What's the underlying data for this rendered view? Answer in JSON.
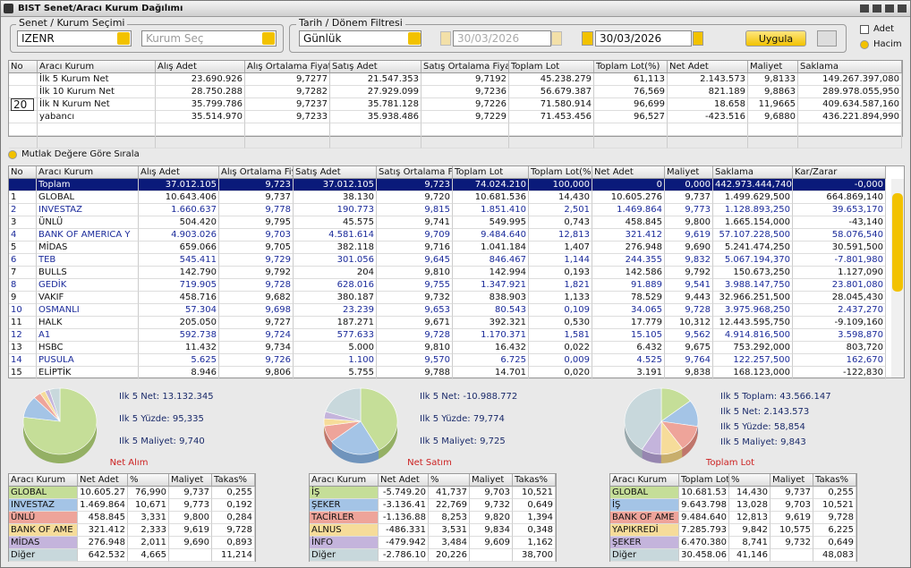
{
  "window_title": "BIST Senet/Aracı Kurum Dağılımı",
  "filters": {
    "group1_label": "Senet / Kurum Seçimi",
    "symbol": "IZENR",
    "broker_placeholder": "Kurum Seç",
    "group2_label": "Tarih / Dönem Filtresi",
    "period": "Günlük",
    "start_date": "30/03/2026",
    "end_date": "30/03/2026",
    "apply_button": "Uygula",
    "option_count": "Adet",
    "option_volume": "Hacim"
  },
  "top_table": {
    "headers": [
      "No",
      "Aracı Kurum",
      "Alış Adet",
      "Alış Ortalama Fiyat",
      "Satış Adet",
      "Satış Ortalama Fiyat",
      "Toplam Lot",
      "Toplam Lot(%)",
      "Net Adet",
      "Maliyet",
      "Saklama"
    ],
    "n_input": "20",
    "rows": [
      [
        "İlk 5 Kurum Net",
        "23.690.926",
        "9,7277",
        "21.547.353",
        "9,7192",
        "45.238.279",
        "61,113",
        "2.143.573",
        "9,8133",
        "149.267.397,080"
      ],
      [
        "İlk 10 Kurum Net",
        "28.750.288",
        "9,7282",
        "27.929.099",
        "9,7236",
        "56.679.387",
        "76,569",
        "821.189",
        "9,8863",
        "289.978.055,950"
      ],
      [
        "İlk N Kurum Net",
        "35.799.786",
        "9,7237",
        "35.781.128",
        "9,7226",
        "71.580.914",
        "96,699",
        "18.658",
        "11,9665",
        "409.634.587,160"
      ],
      [
        "yabancı",
        "35.514.970",
        "9,7233",
        "35.938.486",
        "9,7229",
        "71.453.456",
        "96,527",
        "-423.516",
        "9,6880",
        "436.221.894,990"
      ]
    ]
  },
  "sort_option": "Mutlak Değere Göre Sırala",
  "main_table": {
    "headers": [
      "No",
      "Aracı Kurum",
      "Alış Adet",
      "Alış Ortalama Fiy",
      "Satış Adet",
      "Satış Ortalama Fi",
      "Toplam Lot",
      "Toplam Lot(%",
      "Net Adet",
      "Maliyet",
      "Saklama",
      "Kar/Zarar"
    ],
    "rows": [
      [
        null,
        "Toplam",
        "37.012.105",
        "9,723",
        "37.012.105",
        "9,723",
        "74.024.210",
        "100,000",
        "0",
        "0,000",
        "442.973.444,740",
        "-0,000"
      ],
      [
        "1",
        "GLOBAL",
        "10.643.406",
        "9,737",
        "38.130",
        "9,720",
        "10.681.536",
        "14,430",
        "10.605.276",
        "9,737",
        "1.499.629,500",
        "664.869,140"
      ],
      [
        "2",
        "INVESTAZ",
        "1.660.637",
        "9,778",
        "190.773",
        "9,815",
        "1.851.410",
        "2,501",
        "1.469.864",
        "9,773",
        "1.128.893,250",
        "39.653,170"
      ],
      [
        "3",
        "ÜNLÜ",
        "504.420",
        "9,795",
        "45.575",
        "9,741",
        "549.995",
        "0,743",
        "458.845",
        "9,800",
        "1.665.154,000",
        "-43,140"
      ],
      [
        "4",
        "BANK OF AMERICA Y",
        "4.903.026",
        "9,703",
        "4.581.614",
        "9,709",
        "9.484.640",
        "12,813",
        "321.412",
        "9,619",
        "57.107.228,500",
        "58.076,540"
      ],
      [
        "5",
        "MİDAS",
        "659.066",
        "9,705",
        "382.118",
        "9,716",
        "1.041.184",
        "1,407",
        "276.948",
        "9,690",
        "5.241.474,250",
        "30.591,500"
      ],
      [
        "6",
        "TEB",
        "545.411",
        "9,729",
        "301.056",
        "9,645",
        "846.467",
        "1,144",
        "244.355",
        "9,832",
        "5.067.194,370",
        "-7.801,980"
      ],
      [
        "7",
        "BULLS",
        "142.790",
        "9,792",
        "204",
        "9,810",
        "142.994",
        "0,193",
        "142.586",
        "9,792",
        "150.673,250",
        "1.127,090"
      ],
      [
        "8",
        "GEDİK",
        "719.905",
        "9,728",
        "628.016",
        "9,755",
        "1.347.921",
        "1,821",
        "91.889",
        "9,541",
        "3.988.147,750",
        "23.801,080"
      ],
      [
        "9",
        "VAKIF",
        "458.716",
        "9,682",
        "380.187",
        "9,732",
        "838.903",
        "1,133",
        "78.529",
        "9,443",
        "32.966.251,500",
        "28.045,430"
      ],
      [
        "10",
        "OSMANLI",
        "57.304",
        "9,698",
        "23.239",
        "9,653",
        "80.543",
        "0,109",
        "34.065",
        "9,728",
        "3.975.968,250",
        "2.437,270"
      ],
      [
        "11",
        "HALK",
        "205.050",
        "9,727",
        "187.271",
        "9,671",
        "392.321",
        "0,530",
        "17.779",
        "10,312",
        "12.443.595,750",
        "-9.109,160"
      ],
      [
        "12",
        "A1",
        "592.738",
        "9,724",
        "577.633",
        "9,728",
        "1.170.371",
        "1,581",
        "15.105",
        "9,562",
        "4.914.816,500",
        "3.598,870"
      ],
      [
        "13",
        "HSBC",
        "11.432",
        "9,734",
        "5.000",
        "9,810",
        "16.432",
        "0,022",
        "6.432",
        "9,675",
        "753.292,000",
        "803,720"
      ],
      [
        "14",
        "PUSULA",
        "5.625",
        "9,726",
        "1.100",
        "9,570",
        "6.725",
        "0,009",
        "4.525",
        "9,764",
        "122.257,500",
        "162,670"
      ],
      [
        "15",
        "ELİPTİK",
        "8.946",
        "9,806",
        "5.755",
        "9,788",
        "14.701",
        "0,020",
        "3.191",
        "9,838",
        "168.123,000",
        "-122,830"
      ]
    ]
  },
  "panels": [
    {
      "title": "Net Alım",
      "stats": [
        "Ilk 5 Net: 13.132.345",
        "Ilk 5 Yüzde: 95,335",
        "Ilk 5 Maliyet: 9,740"
      ],
      "headers": [
        "Aracı Kurum",
        "Net Adet",
        "%",
        "Maliyet",
        "Takas%"
      ],
      "rows": [
        [
          "GLOBAL",
          "10.605.27",
          "76,990",
          "9,737",
          "0,255"
        ],
        [
          "INVESTAZ",
          "1.469.864",
          "10,671",
          "9,773",
          "0,192"
        ],
        [
          "ÜNLÜ",
          "458.845",
          "3,331",
          "9,800",
          "0,284"
        ],
        [
          "BANK OF AME",
          "321.412",
          "2,333",
          "9,619",
          "9,728"
        ],
        [
          "MİDAS",
          "276.948",
          "2,011",
          "9,690",
          "0,893"
        ],
        [
          "Diğer",
          "642.532",
          "4,665",
          null,
          "11,214"
        ]
      ]
    },
    {
      "title": "Net Satım",
      "stats": [
        "Ilk 5 Net: -10.988.772",
        "Ilk 5 Yüzde: 79,774",
        "Ilk 5 Maliyet: 9,725"
      ],
      "headers": [
        "Aracı Kurum",
        "Net Adet",
        "%",
        "Maliyet",
        "Takas%"
      ],
      "rows": [
        [
          "İŞ",
          "-5.749.20",
          "41,737",
          "9,703",
          "10,521"
        ],
        [
          "ŞEKER",
          "-3.136.41",
          "22,769",
          "9,732",
          "0,649"
        ],
        [
          "TACİRLER",
          "-1.136.88",
          "8,253",
          "9,820",
          "1,394"
        ],
        [
          "ALNUS",
          "-486.331",
          "3,531",
          "9,834",
          "0,348"
        ],
        [
          "İNFO",
          "-479.942",
          "3,484",
          "9,609",
          "1,162"
        ],
        [
          "Diğer",
          "-2.786.10",
          "20,226",
          null,
          "38,700"
        ]
      ]
    },
    {
      "title": "Toplam Lot",
      "stats": [
        "Ilk 5 Toplam: 43.566.147",
        "Ilk 5 Net: 2.143.573",
        "Ilk 5 Yüzde: 58,854",
        "Ilk 5 Maliyet: 9,843"
      ],
      "headers": [
        "Aracı Kurum",
        "Toplam Lot",
        "%",
        "Maliyet",
        "Takas%"
      ],
      "rows": [
        [
          "GLOBAL",
          "10.681.53",
          "14,430",
          "9,737",
          "0,255"
        ],
        [
          "İŞ",
          "9.643.798",
          "13,028",
          "9,703",
          "10,521"
        ],
        [
          "BANK OF AME",
          "9.484.640",
          "12,813",
          "9,619",
          "9,728"
        ],
        [
          "YAPIKREDİ",
          "7.285.793",
          "9,842",
          "10,575",
          "6,225"
        ],
        [
          "ŞEKER",
          "6.470.380",
          "8,741",
          "9,732",
          "0,649"
        ],
        [
          "Diğer",
          "30.458.06",
          "41,146",
          null,
          "48,083"
        ]
      ]
    }
  ]
}
